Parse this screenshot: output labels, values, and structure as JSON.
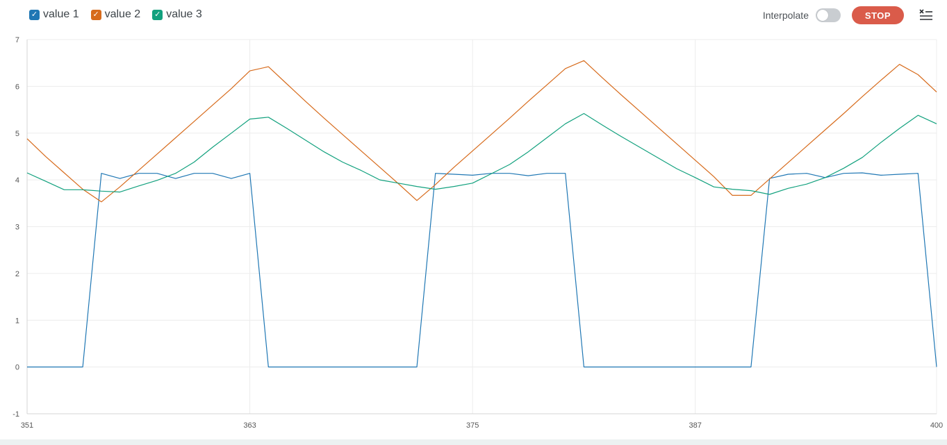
{
  "legend": [
    {
      "label": "value 1",
      "color": "#1f77b4"
    },
    {
      "label": "value 2",
      "color": "#d76b1c"
    },
    {
      "label": "value 3",
      "color": "#12a17e"
    }
  ],
  "controls": {
    "interpolate_label": "Interpolate",
    "interpolate_on": false,
    "stop_label": "STOP",
    "menu_icon": "clear-menu-icon"
  },
  "chart_data": {
    "type": "line",
    "x": [
      351,
      352,
      353,
      354,
      355,
      356,
      357,
      358,
      359,
      360,
      361,
      362,
      363,
      364,
      365,
      366,
      367,
      368,
      369,
      370,
      371,
      372,
      373,
      374,
      375,
      376,
      377,
      378,
      379,
      380,
      381,
      382,
      383,
      384,
      385,
      386,
      387,
      388,
      389,
      390,
      391,
      392,
      393,
      394,
      395,
      396,
      397,
      398,
      399,
      400
    ],
    "series": [
      {
        "name": "value 1",
        "color": "#1f77b4",
        "values": [
          0,
          0,
          0,
          0,
          4.14,
          4.03,
          4.14,
          4.14,
          4.03,
          4.14,
          4.14,
          4.03,
          4.14,
          0,
          0,
          0,
          0,
          0,
          0,
          0,
          0,
          0,
          4.14,
          4.12,
          4.1,
          4.14,
          4.14,
          4.09,
          4.14,
          4.14,
          0,
          0,
          0,
          0,
          0,
          0,
          0,
          0,
          0,
          0,
          4.03,
          4.12,
          4.14,
          4.05,
          4.14,
          4.15,
          4.1,
          4.12,
          4.14,
          0
        ]
      },
      {
        "name": "value 2",
        "color": "#d76b1c",
        "values": [
          4.88,
          4.5,
          4.15,
          3.8,
          3.53,
          3.85,
          4.2,
          4.55,
          4.9,
          5.25,
          5.6,
          5.95,
          6.33,
          6.42,
          6.05,
          5.68,
          5.32,
          4.97,
          4.62,
          4.27,
          3.92,
          3.56,
          3.9,
          4.27,
          4.62,
          4.97,
          5.32,
          5.68,
          6.03,
          6.38,
          6.55,
          6.18,
          5.82,
          5.47,
          5.12,
          4.77,
          4.42,
          4.07,
          3.67,
          3.67,
          4.02,
          4.37,
          4.72,
          5.07,
          5.42,
          5.78,
          6.13,
          6.47,
          6.25,
          5.88
        ]
      },
      {
        "name": "value 3",
        "color": "#12a17e",
        "values": [
          4.15,
          3.97,
          3.79,
          3.79,
          3.76,
          3.74,
          3.87,
          3.99,
          4.14,
          4.38,
          4.7,
          5.0,
          5.3,
          5.34,
          5.1,
          4.85,
          4.6,
          4.38,
          4.2,
          4.0,
          3.93,
          3.86,
          3.8,
          3.86,
          3.93,
          4.13,
          4.33,
          4.6,
          4.9,
          5.2,
          5.42,
          5.17,
          4.93,
          4.7,
          4.47,
          4.24,
          4.05,
          3.85,
          3.8,
          3.77,
          3.69,
          3.82,
          3.91,
          4.05,
          4.25,
          4.48,
          4.8,
          5.1,
          5.38,
          5.2
        ]
      }
    ],
    "yticks": [
      -1,
      0,
      1,
      2,
      3,
      4,
      5,
      6,
      7
    ],
    "xticks": [
      351,
      363,
      375,
      387,
      400
    ],
    "xlim": [
      351,
      400
    ],
    "ylim": [
      -1,
      7
    ],
    "grid": true,
    "legend_position": "top-left"
  }
}
